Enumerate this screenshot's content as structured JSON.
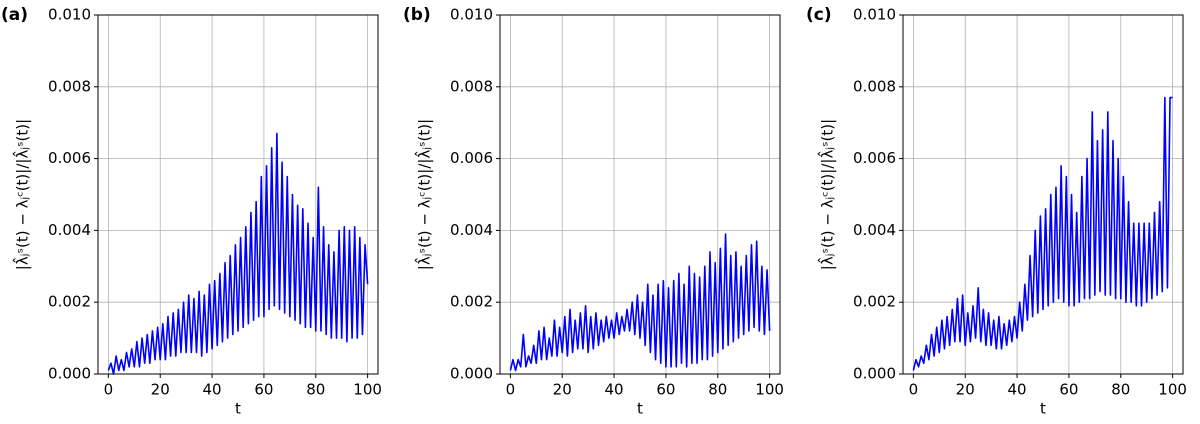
{
  "chart_data": [
    {
      "type": "line",
      "panel_label": "(a)",
      "xlabel": "t",
      "ylabel": "|λ̂ⱼˢ(t) − λⱼᶜ(t)|/|λ̂ⱼˢ(t)|",
      "color": "#0000ff",
      "grid": true,
      "xlim": [
        -4,
        104
      ],
      "ylim": [
        0,
        0.01
      ],
      "xticks": [
        0,
        20,
        40,
        60,
        80,
        100
      ],
      "yticks": [
        {
          "value": 0,
          "label": "0.000"
        },
        {
          "value": 0.002,
          "label": "0.002"
        },
        {
          "value": 0.004,
          "label": "0.004"
        },
        {
          "value": 0.006,
          "label": "0.006"
        },
        {
          "value": 0.008,
          "label": "0.008"
        },
        {
          "value": 0.01,
          "label": "0.010"
        }
      ],
      "x": [
        0,
        1,
        2,
        3,
        4,
        5,
        6,
        7,
        8,
        9,
        10,
        11,
        12,
        13,
        14,
        15,
        16,
        17,
        18,
        19,
        20,
        21,
        22,
        23,
        24,
        25,
        26,
        27,
        28,
        29,
        30,
        31,
        32,
        33,
        34,
        35,
        36,
        37,
        38,
        39,
        40,
        41,
        42,
        43,
        44,
        45,
        46,
        47,
        48,
        49,
        50,
        51,
        52,
        53,
        54,
        55,
        56,
        57,
        58,
        59,
        60,
        61,
        62,
        63,
        64,
        65,
        66,
        67,
        68,
        69,
        70,
        71,
        72,
        73,
        74,
        75,
        76,
        77,
        78,
        79,
        80,
        81,
        82,
        83,
        84,
        85,
        86,
        87,
        88,
        89,
        90,
        91,
        92,
        93,
        94,
        95,
        96,
        97,
        98,
        99,
        100
      ],
      "values": [
        0.0001,
        0.0003,
        0.0,
        0.0005,
        0.0001,
        0.0004,
        0.0001,
        0.0006,
        0.0002,
        0.0007,
        0.0002,
        0.0009,
        0.0002,
        0.001,
        0.0003,
        0.0011,
        0.0003,
        0.0012,
        0.0004,
        0.0013,
        0.0004,
        0.0014,
        0.0004,
        0.0016,
        0.0005,
        0.0017,
        0.0005,
        0.0018,
        0.0006,
        0.002,
        0.0006,
        0.0022,
        0.0006,
        0.0021,
        0.0006,
        0.0023,
        0.0005,
        0.0022,
        0.0006,
        0.0025,
        0.0007,
        0.0026,
        0.0008,
        0.0028,
        0.0009,
        0.0031,
        0.001,
        0.0033,
        0.0011,
        0.0036,
        0.0012,
        0.0038,
        0.0013,
        0.0041,
        0.0014,
        0.0045,
        0.0015,
        0.0048,
        0.0016,
        0.0055,
        0.0016,
        0.0058,
        0.0018,
        0.0063,
        0.0019,
        0.0067,
        0.0018,
        0.0059,
        0.0017,
        0.0055,
        0.0016,
        0.005,
        0.0015,
        0.0047,
        0.0014,
        0.0046,
        0.0013,
        0.0042,
        0.0013,
        0.0038,
        0.0012,
        0.0052,
        0.0012,
        0.0041,
        0.0011,
        0.0036,
        0.001,
        0.0034,
        0.001,
        0.004,
        0.001,
        0.0041,
        0.0009,
        0.004,
        0.001,
        0.0041,
        0.001,
        0.0038,
        0.0011,
        0.0036,
        0.0025
      ]
    },
    {
      "type": "line",
      "panel_label": "(b)",
      "xlabel": "t",
      "ylabel": "|λ̂ⱼˢ(t) − λⱼᶜ(t)|/|λ̂ⱼˢ(t)|",
      "color": "#0000ff",
      "grid": true,
      "xlim": [
        -4,
        104
      ],
      "ylim": [
        0,
        0.01
      ],
      "xticks": [
        0,
        20,
        40,
        60,
        80,
        100
      ],
      "yticks": [
        {
          "value": 0,
          "label": "0.000"
        },
        {
          "value": 0.002,
          "label": "0.002"
        },
        {
          "value": 0.004,
          "label": "0.004"
        },
        {
          "value": 0.006,
          "label": "0.006"
        },
        {
          "value": 0.008,
          "label": "0.008"
        },
        {
          "value": 0.01,
          "label": "0.010"
        }
      ],
      "x": [
        0,
        1,
        2,
        3,
        4,
        5,
        6,
        7,
        8,
        9,
        10,
        11,
        12,
        13,
        14,
        15,
        16,
        17,
        18,
        19,
        20,
        21,
        22,
        23,
        24,
        25,
        26,
        27,
        28,
        29,
        30,
        31,
        32,
        33,
        34,
        35,
        36,
        37,
        38,
        39,
        40,
        41,
        42,
        43,
        44,
        45,
        46,
        47,
        48,
        49,
        50,
        51,
        52,
        53,
        54,
        55,
        56,
        57,
        58,
        59,
        60,
        61,
        62,
        63,
        64,
        65,
        66,
        67,
        68,
        69,
        70,
        71,
        72,
        73,
        74,
        75,
        76,
        77,
        78,
        79,
        80,
        81,
        82,
        83,
        84,
        85,
        86,
        87,
        88,
        89,
        90,
        91,
        92,
        93,
        94,
        95,
        96,
        97,
        98,
        99,
        100
      ],
      "values": [
        0.0001,
        0.0004,
        0.0001,
        0.0004,
        0.0002,
        0.0011,
        0.0002,
        0.0005,
        0.0003,
        0.0008,
        0.0003,
        0.0012,
        0.0004,
        0.0013,
        0.0004,
        0.001,
        0.0005,
        0.0015,
        0.0005,
        0.0013,
        0.0006,
        0.0016,
        0.0005,
        0.0018,
        0.0006,
        0.0015,
        0.0007,
        0.0017,
        0.0007,
        0.0019,
        0.0006,
        0.0016,
        0.0007,
        0.0017,
        0.0008,
        0.0015,
        0.0009,
        0.0016,
        0.001,
        0.0015,
        0.001,
        0.0017,
        0.0011,
        0.0016,
        0.0012,
        0.0018,
        0.0012,
        0.002,
        0.0011,
        0.0022,
        0.001,
        0.002,
        0.0008,
        0.0025,
        0.0006,
        0.0022,
        0.0004,
        0.0025,
        0.0003,
        0.0026,
        0.0002,
        0.0024,
        0.0002,
        0.0026,
        0.0002,
        0.0028,
        0.0003,
        0.0025,
        0.0002,
        0.003,
        0.0003,
        0.0028,
        0.0003,
        0.0027,
        0.0004,
        0.003,
        0.0004,
        0.0034,
        0.0005,
        0.0031,
        0.0006,
        0.0035,
        0.0007,
        0.0039,
        0.0008,
        0.0033,
        0.0009,
        0.0034,
        0.001,
        0.003,
        0.0011,
        0.0033,
        0.0012,
        0.0036,
        0.0013,
        0.0037,
        0.0012,
        0.003,
        0.0011,
        0.0029,
        0.0012
      ]
    },
    {
      "type": "line",
      "panel_label": "(c)",
      "xlabel": "t",
      "ylabel": "|λ̂ⱼˢ(t) − λⱼᶜ(t)|/|λ̂ⱼˢ(t)|",
      "color": "#0000ff",
      "grid": true,
      "xlim": [
        -4,
        104
      ],
      "ylim": [
        0,
        0.01
      ],
      "xticks": [
        0,
        20,
        40,
        60,
        80,
        100
      ],
      "yticks": [
        {
          "value": 0,
          "label": "0.000"
        },
        {
          "value": 0.002,
          "label": "0.002"
        },
        {
          "value": 0.004,
          "label": "0.004"
        },
        {
          "value": 0.006,
          "label": "0.006"
        },
        {
          "value": 0.008,
          "label": "0.008"
        },
        {
          "value": 0.01,
          "label": "0.010"
        }
      ],
      "x": [
        0,
        1,
        2,
        3,
        4,
        5,
        6,
        7,
        8,
        9,
        10,
        11,
        12,
        13,
        14,
        15,
        16,
        17,
        18,
        19,
        20,
        21,
        22,
        23,
        24,
        25,
        26,
        27,
        28,
        29,
        30,
        31,
        32,
        33,
        34,
        35,
        36,
        37,
        38,
        39,
        40,
        41,
        42,
        43,
        44,
        45,
        46,
        47,
        48,
        49,
        50,
        51,
        52,
        53,
        54,
        55,
        56,
        57,
        58,
        59,
        60,
        61,
        62,
        63,
        64,
        65,
        66,
        67,
        68,
        69,
        70,
        71,
        72,
        73,
        74,
        75,
        76,
        77,
        78,
        79,
        80,
        81,
        82,
        83,
        84,
        85,
        86,
        87,
        88,
        89,
        90,
        91,
        92,
        93,
        94,
        95,
        96,
        97,
        98,
        99,
        100
      ],
      "values": [
        0.0001,
        0.0004,
        0.0002,
        0.0005,
        0.0003,
        0.0008,
        0.0004,
        0.0011,
        0.0005,
        0.0013,
        0.0006,
        0.0015,
        0.0007,
        0.0016,
        0.0008,
        0.0018,
        0.0009,
        0.0021,
        0.0009,
        0.0022,
        0.0008,
        0.0017,
        0.0009,
        0.0019,
        0.001,
        0.0024,
        0.0009,
        0.0018,
        0.0008,
        0.0017,
        0.0008,
        0.0015,
        0.0007,
        0.0016,
        0.0007,
        0.0014,
        0.0008,
        0.0015,
        0.0009,
        0.0016,
        0.001,
        0.002,
        0.0012,
        0.0025,
        0.0015,
        0.0033,
        0.0016,
        0.004,
        0.0017,
        0.0044,
        0.0018,
        0.0046,
        0.0019,
        0.005,
        0.002,
        0.0052,
        0.0021,
        0.0058,
        0.002,
        0.0055,
        0.0019,
        0.005,
        0.0019,
        0.0045,
        0.002,
        0.0055,
        0.0021,
        0.006,
        0.0021,
        0.0073,
        0.0022,
        0.0065,
        0.0023,
        0.0068,
        0.0022,
        0.0073,
        0.0022,
        0.0065,
        0.0021,
        0.006,
        0.0021,
        0.0055,
        0.002,
        0.0048,
        0.002,
        0.0042,
        0.0019,
        0.0042,
        0.0019,
        0.0042,
        0.002,
        0.0042,
        0.0021,
        0.0045,
        0.0022,
        0.0048,
        0.0023,
        0.0077,
        0.0024,
        0.0077,
        0.0077
      ]
    }
  ]
}
